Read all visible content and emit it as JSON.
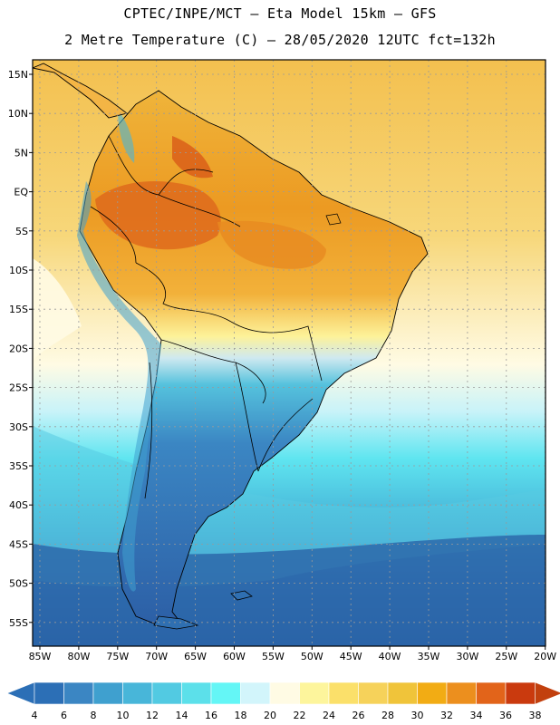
{
  "header": {
    "line1": "CPTEC/INPE/MCT –  Eta Model 15km – GFS",
    "line2": "2 Metre Temperature (C) – 28/05/2020 12UTC fct=132h"
  },
  "axes": {
    "lat_labels": [
      "15N",
      "10N",
      "5N",
      "EQ",
      "5S",
      "10S",
      "15S",
      "20S",
      "25S",
      "30S",
      "35S",
      "40S",
      "45S",
      "50S",
      "55S"
    ],
    "lon_labels": [
      "85W",
      "80W",
      "75W",
      "70W",
      "65W",
      "60W",
      "55W",
      "50W",
      "45W",
      "40W",
      "35W",
      "30W",
      "25W",
      "20W"
    ]
  },
  "legend": {
    "ticks": [
      "4",
      "6",
      "8",
      "10",
      "12",
      "14",
      "16",
      "18",
      "20",
      "22",
      "24",
      "26",
      "28",
      "30",
      "32",
      "34",
      "36",
      "38"
    ],
    "colors": [
      "#2c6fb6",
      "#3b86c3",
      "#3fa0cf",
      "#48b6d9",
      "#52cae2",
      "#5ce0ea",
      "#64f6f6",
      "#d2f5fb",
      "#fffbe4",
      "#fdf59c",
      "#fbe06a",
      "#f6d25a",
      "#f0c43a",
      "#f2ac14",
      "#ec8f1e",
      "#e2641a",
      "#ca3a0e"
    ],
    "low_arrow_color": "#2c6fb6",
    "high_arrow_color": "#c2400e"
  },
  "colors": {
    "land_warm": "#efa728",
    "land_hot": "#de6a1c",
    "land_cool": "#2f6fb1",
    "ocean_north": "#f3c45c",
    "ocean_mid": "#66dbef",
    "ocean_south": "#2b67ab",
    "coast": "#000000",
    "grid": "#9a9a9a"
  }
}
